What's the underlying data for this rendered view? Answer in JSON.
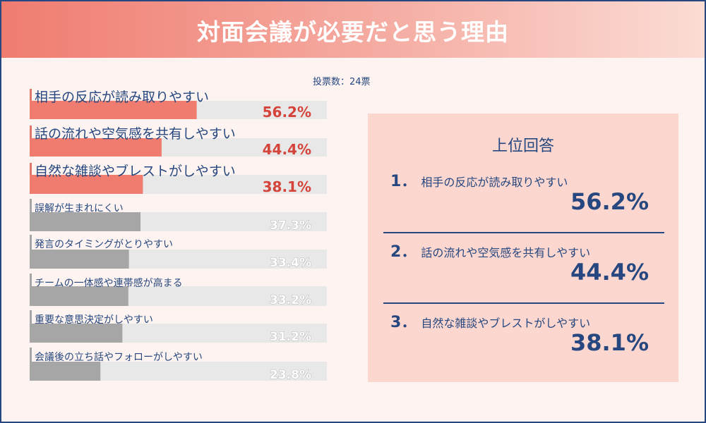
{
  "title": "対面会議が必要だと思う理由",
  "votes_text": "投票数：24票",
  "chart_data": {
    "type": "bar",
    "orientation": "horizontal",
    "categories": [
      "相手の反応が読み取りやすい",
      "話の流れや空気感を共有しやすい",
      "自然な雑談やブレストがしやすい",
      "誤解が生まれにくい",
      "発言のタイミングがとりやすい",
      "チームの一体感や連帯感が高まる",
      "重要な意思決定がしやすい",
      "会議後の立ち話やフォローがしやすい"
    ],
    "values": [
      56.2,
      44.4,
      38.1,
      37.3,
      33.4,
      33.2,
      31.2,
      23.8
    ],
    "value_labels": [
      "56.2%",
      "44.4%",
      "38.1%",
      "37.3%",
      "33.4%",
      "33.2%",
      "31.2%",
      "23.8%"
    ],
    "xlim": [
      0,
      100
    ],
    "highlight_count": 3,
    "colors": {
      "highlight": "#f07c70",
      "normal": "#a6a6a6",
      "track": "#e8e8e8",
      "accent": "#e0776c"
    }
  },
  "ranking": {
    "title": "上位回答",
    "items": [
      {
        "number": "1．",
        "label": "相手の反応が読み取りやすい",
        "pct": "56.2%"
      },
      {
        "number": "2．",
        "label": "話の流れや空気感を共有しやすい",
        "pct": "44.4%"
      },
      {
        "number": "3．",
        "label": "自然な雑談やブレストがしやすい",
        "pct": "38.1%"
      }
    ]
  },
  "colors": {
    "navy": "#26477f",
    "panel": "#fcd7cf",
    "background": "#fdf4f1"
  }
}
